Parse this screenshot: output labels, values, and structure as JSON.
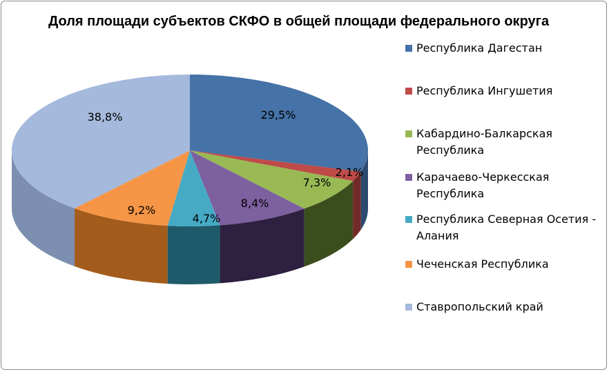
{
  "chart_data": {
    "type": "pie",
    "title": "Доля площади субъектов СКФО в общей площади федерального округа",
    "series": [
      {
        "name": "Республика Дагестан",
        "value": 29.5,
        "label": "29,5%",
        "color": "#4572a7",
        "side": "#2c4a70"
      },
      {
        "name": "Республика Ингушетия",
        "value": 2.1,
        "label": "2,1%",
        "color": "#be4b48",
        "side": "#722a28"
      },
      {
        "name": "Кабардино-Балкарская Республика",
        "value": 7.3,
        "label": "7,3%",
        "color": "#98b954",
        "side": "#3b4d1c"
      },
      {
        "name": "Карачаево-Черкесская Республика",
        "value": 8.4,
        "label": "8,4%",
        "color": "#7d60a0",
        "side": "#2e2040"
      },
      {
        "name": "Республика Северная Осетия - Алания",
        "value": 4.7,
        "label": "4,7%",
        "color": "#46aac5",
        "side": "#1e5a6a"
      },
      {
        "name": "Чеченская Республика",
        "value": 9.2,
        "label": "9,2%",
        "color": "#f69546",
        "side": "#a35c1c"
      },
      {
        "name": "Ставропольский край",
        "value": 38.8,
        "label": "38,8%",
        "color": "#a5b9dc",
        "side": "#7d8fb1"
      }
    ],
    "legend_position": "right"
  }
}
